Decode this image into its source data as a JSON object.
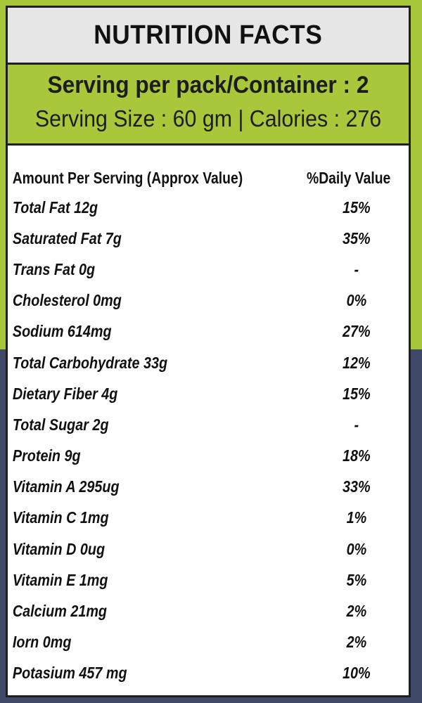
{
  "colors": {
    "green": "#a8c73a",
    "navy": "#3f4a69",
    "title_bg": "#e6e6e6",
    "text": "#111111"
  },
  "title": "NUTRITION FACTS",
  "serving": {
    "per_pack": "Serving per pack/Container : 2",
    "size_calories": "Serving Size : 60 gm | Calories : 276"
  },
  "table": {
    "header": {
      "amount": "Amount Per Serving (Approx Value)",
      "daily_value": "%Daily Value"
    },
    "rows": [
      {
        "nutrient": "Total Fat 12g",
        "dv": "15%"
      },
      {
        "nutrient": "Saturated Fat 7g",
        "dv": "35%"
      },
      {
        "nutrient": "Trans Fat 0g",
        "dv": "-"
      },
      {
        "nutrient": "Cholesterol 0mg",
        "dv": "0%"
      },
      {
        "nutrient": "Sodium 614mg",
        "dv": "27%"
      },
      {
        "nutrient": "Total Carbohydrate 33g",
        "dv": "12%"
      },
      {
        "nutrient": "Dietary Fiber 4g",
        "dv": "15%"
      },
      {
        "nutrient": "Total Sugar 2g",
        "dv": "-"
      },
      {
        "nutrient": "Protein 9g",
        "dv": "18%"
      },
      {
        "nutrient": "Vitamin A 295ug",
        "dv": "33%"
      },
      {
        "nutrient": "Vitamin C 1mg",
        "dv": "1%"
      },
      {
        "nutrient": "Vitamin D 0ug",
        "dv": "0%"
      },
      {
        "nutrient": "Vitamin E 1mg",
        "dv": "5%"
      },
      {
        "nutrient": "Calcium 21mg",
        "dv": "2%"
      },
      {
        "nutrient": "Iorn 0mg",
        "dv": "2%"
      },
      {
        "nutrient": "Potasium 457 mg",
        "dv": "10%"
      }
    ]
  }
}
